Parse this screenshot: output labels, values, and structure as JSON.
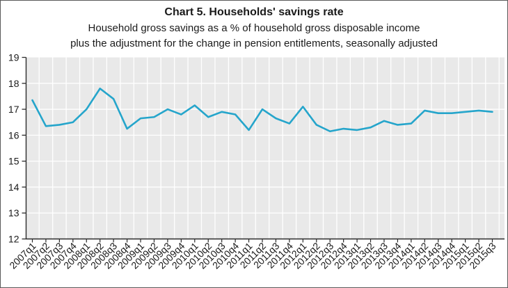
{
  "figure": {
    "title": "Chart 5. Households' savings rate",
    "subtitle_line1": "Household gross savings as a % of household gross disposable income",
    "subtitle_line2": "plus the adjustment for the change in pension entitlements, seasonally adjusted"
  },
  "chart_data": {
    "type": "line",
    "title": "Chart 5. Households' savings rate",
    "subtitle": "Household gross savings as a % of household gross disposable income plus the adjustment for the change in pension entitlements, seasonally adjusted",
    "xlabel": "",
    "ylabel": "",
    "ylim": [
      12,
      19
    ],
    "yticks": [
      12,
      13,
      14,
      15,
      16,
      17,
      18,
      19
    ],
    "grid": true,
    "legend": "none",
    "categories": [
      "2007q1",
      "2007q2",
      "2007q3",
      "2007q4",
      "2008q1",
      "2008q2",
      "2008q3",
      "2008q4",
      "2009q1",
      "2009q2",
      "2009q3",
      "2009q4",
      "2010q1",
      "2010q2",
      "2010q3",
      "2010q4",
      "2011q1",
      "2011q2",
      "2011q3",
      "2011q4",
      "2012q1",
      "2012q2",
      "2012q3",
      "2012q4",
      "2013q1",
      "2013q2",
      "2013q3",
      "2013q4",
      "2014q1",
      "2014q2",
      "2014q3",
      "2014q4",
      "2015q1",
      "2015q2",
      "2015q3"
    ],
    "series": [
      {
        "name": "Households' savings rate",
        "values": [
          17.35,
          16.35,
          16.4,
          16.5,
          17.0,
          17.8,
          17.4,
          16.25,
          16.65,
          16.7,
          17.0,
          16.8,
          17.15,
          16.7,
          16.9,
          16.8,
          16.2,
          17.0,
          16.65,
          16.45,
          17.1,
          16.4,
          16.15,
          16.25,
          16.2,
          16.3,
          16.55,
          16.4,
          16.45,
          16.95,
          16.85,
          16.85,
          16.9,
          16.95,
          16.9
        ]
      }
    ],
    "colors": {
      "line": "#25a5cb",
      "plot_background": "#e9e9e9",
      "gridline": "#ffffff",
      "axis": "#2b2b2b",
      "text": "#1a1a1a"
    }
  }
}
